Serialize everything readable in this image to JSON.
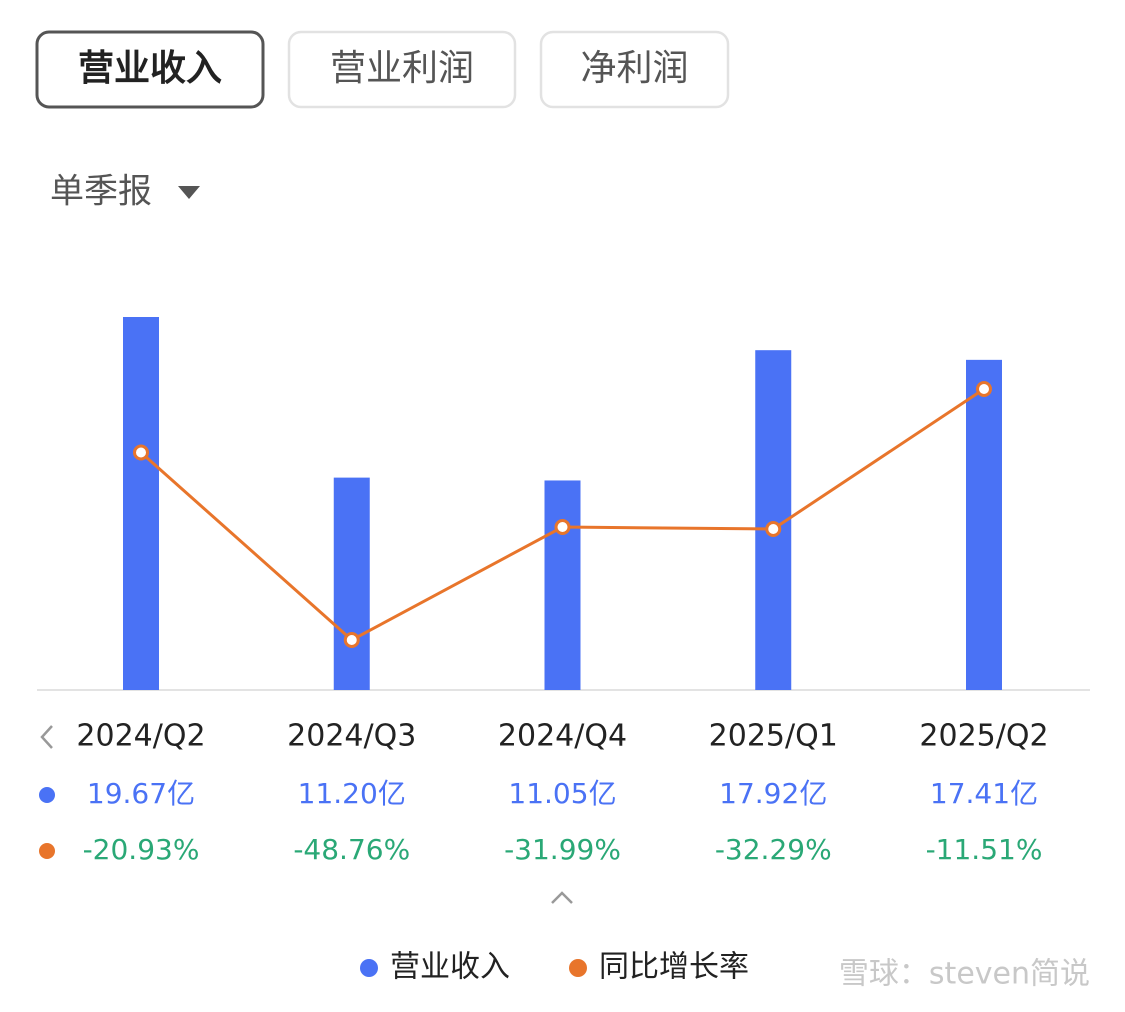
{
  "tabs": [
    "营业收入",
    "营业利润",
    "净利润"
  ],
  "period": "单季报",
  "watermark": "雪球：steven简说",
  "chart_data": {
    "type": "bar",
    "categories": [
      "2024/Q2",
      "2024/Q3",
      "2024/Q4",
      "2025/Q1",
      "2025/Q2"
    ],
    "series": [
      {
        "name": "营业收入",
        "type": "bar",
        "color": "#4a72f5",
        "values": [
          19.67,
          11.2,
          11.05,
          17.92,
          17.41
        ],
        "value_labels": [
          "19.67亿",
          "11.20亿",
          "11.05亿",
          "17.92亿",
          "17.41亿"
        ],
        "label_color": "#4a72f5"
      },
      {
        "name": "同比增长率",
        "type": "line",
        "axis": "y2",
        "color": "#e8752b",
        "values": [
          -20.93,
          -48.76,
          -31.99,
          -32.29,
          -11.51
        ],
        "value_labels": [
          "-20.93%",
          "-48.76%",
          "-31.99%",
          "-32.29%",
          "-11.51%"
        ],
        "label_color": "#2aa876"
      }
    ]
  }
}
